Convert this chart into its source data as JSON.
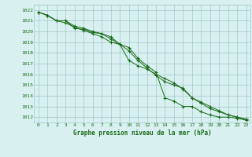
{
  "x": [
    0,
    1,
    2,
    3,
    4,
    5,
    6,
    7,
    8,
    9,
    10,
    11,
    12,
    13,
    14,
    15,
    16,
    17,
    18,
    19,
    20,
    21,
    22,
    23
  ],
  "line1": [
    1021.8,
    1021.5,
    1021.0,
    1021.0,
    1020.3,
    1020.2,
    1019.9,
    1019.8,
    1019.5,
    1018.8,
    1018.5,
    1017.5,
    1016.8,
    1016.2,
    1013.8,
    1013.5,
    1013.0,
    1013.0,
    1012.5,
    1012.2,
    1012.0,
    1012.0,
    1011.9,
    1011.7
  ],
  "line2": [
    1021.8,
    1021.5,
    1021.0,
    1021.0,
    1020.5,
    1020.3,
    1020.0,
    1019.8,
    1019.3,
    1018.8,
    1018.2,
    1017.3,
    1016.6,
    1015.9,
    1015.3,
    1015.0,
    1014.7,
    1013.8,
    1013.4,
    1013.0,
    1012.6,
    1012.2,
    1012.0,
    1011.8
  ],
  "line3": [
    1021.8,
    1021.5,
    1021.0,
    1020.8,
    1020.4,
    1020.1,
    1019.8,
    1019.5,
    1019.0,
    1018.8,
    1017.3,
    1016.8,
    1016.5,
    1016.0,
    1015.6,
    1015.2,
    1014.6,
    1013.8,
    1013.3,
    1012.8,
    1012.5,
    1012.2,
    1012.0,
    1011.8
  ],
  "bg_color": "#d8f0f0",
  "grid_color": "#a0c8c8",
  "line_color": "#1a6b1a",
  "xlabel": "Graphe pression niveau de la mer (hPa)",
  "ylim_min": 1011.5,
  "ylim_max": 1022.5,
  "yticks": [
    1012,
    1013,
    1014,
    1015,
    1016,
    1017,
    1018,
    1019,
    1020,
    1021,
    1022
  ],
  "xticks": [
    0,
    1,
    2,
    3,
    4,
    5,
    6,
    7,
    8,
    9,
    10,
    11,
    12,
    13,
    14,
    15,
    16,
    17,
    18,
    19,
    20,
    21,
    22,
    23
  ]
}
